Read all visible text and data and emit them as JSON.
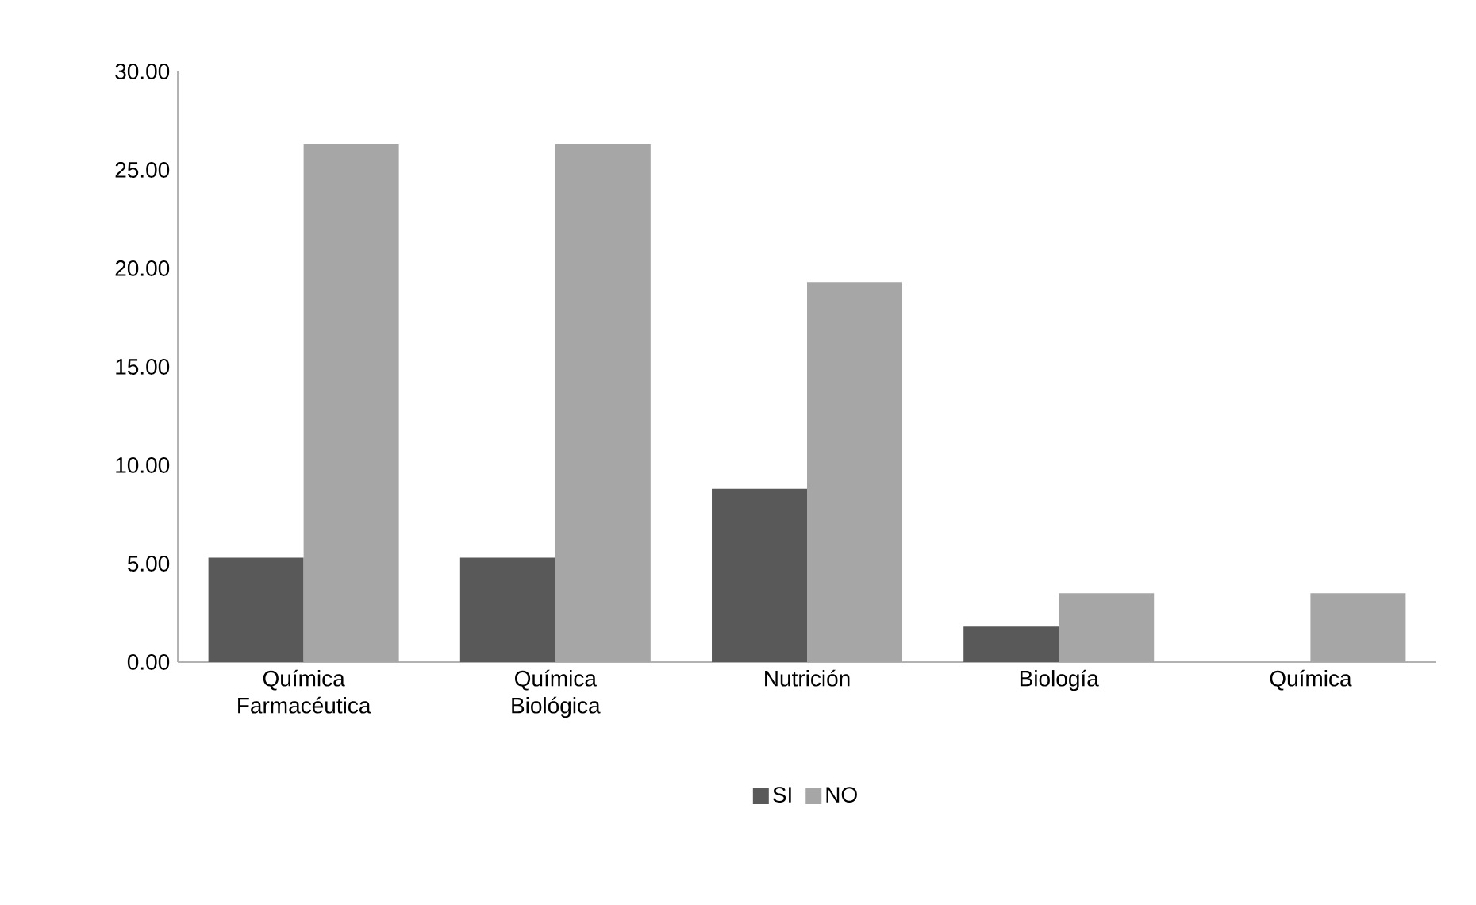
{
  "chart_data": {
    "type": "bar",
    "categories": [
      "Química Farmacéutica",
      "Química Biológica",
      "Nutrición",
      "Biología",
      "Química"
    ],
    "series": [
      {
        "name": "SI",
        "color": "#595959",
        "values": [
          5.3,
          5.3,
          8.8,
          1.8,
          0
        ]
      },
      {
        "name": "NO",
        "color": "#a6a6a6",
        "values": [
          26.3,
          26.3,
          19.3,
          3.5,
          3.5
        ]
      }
    ],
    "ylim": [
      0,
      30
    ],
    "yticks": [
      {
        "value": 0,
        "label": "0.00"
      },
      {
        "value": 5,
        "label": "5.00"
      },
      {
        "value": 10,
        "label": "10.00"
      },
      {
        "value": 15,
        "label": "15.00"
      },
      {
        "value": 20,
        "label": "20.00"
      },
      {
        "value": 25,
        "label": "25.00"
      },
      {
        "value": 30,
        "label": "30.00"
      }
    ],
    "grid": false,
    "legend": "bottom"
  }
}
